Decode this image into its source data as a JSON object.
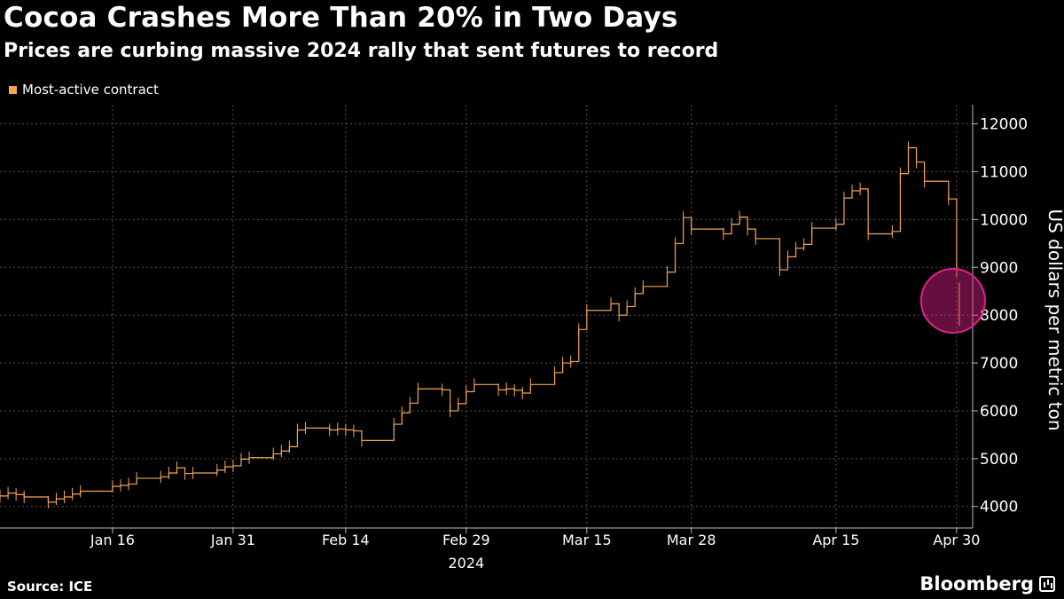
{
  "title": "Cocoa Crashes More Than 20% in Two Days",
  "subtitle": "Prices are curbing massive 2024 rally that sent futures to record",
  "source": "Source: ICE",
  "brand": "Bloomberg",
  "brand_icon": "bloomberg-chart-icon",
  "colors": {
    "background": "#000000",
    "series": "#f5a650",
    "grid": "#555555",
    "highlight": "#e0218a"
  },
  "chart_data": {
    "type": "line",
    "title": "Cocoa Crashes More Than 20% in Two Days",
    "subtitle": "Prices are curbing massive 2024 rally that sent futures to record",
    "ylabel": "US dollars per metric ton",
    "xlabel": "",
    "year_label": "2024",
    "ylim": [
      3550,
      12400
    ],
    "yticks": [
      4000,
      5000,
      6000,
      7000,
      8000,
      9000,
      10000,
      11000,
      12000
    ],
    "xticks": [
      {
        "label": "Jan 16",
        "x": "2024-01-16"
      },
      {
        "label": "Jan 31",
        "x": "2024-01-31"
      },
      {
        "label": "Feb 14",
        "x": "2024-02-14"
      },
      {
        "label": "Feb 29",
        "x": "2024-02-29"
      },
      {
        "label": "Mar 15",
        "x": "2024-03-15"
      },
      {
        "label": "Mar 28",
        "x": "2024-03-28"
      },
      {
        "label": "Apr 15",
        "x": "2024-04-15"
      },
      {
        "label": "Apr 30",
        "x": "2024-04-30"
      }
    ],
    "xlim": [
      "2024-01-02",
      "2024-05-02"
    ],
    "grid": true,
    "legend_position": "top-left",
    "highlight": {
      "x": "2024-04-30",
      "y": 8300,
      "note": "circled final two sessions"
    },
    "series": [
      {
        "name": "Most-active contract",
        "x": [
          "2024-01-02",
          "2024-01-03",
          "2024-01-04",
          "2024-01-05",
          "2024-01-08",
          "2024-01-09",
          "2024-01-10",
          "2024-01-11",
          "2024-01-12",
          "2024-01-16",
          "2024-01-17",
          "2024-01-18",
          "2024-01-19",
          "2024-01-22",
          "2024-01-23",
          "2024-01-24",
          "2024-01-25",
          "2024-01-26",
          "2024-01-29",
          "2024-01-30",
          "2024-01-31",
          "2024-02-01",
          "2024-02-02",
          "2024-02-05",
          "2024-02-06",
          "2024-02-07",
          "2024-02-08",
          "2024-02-09",
          "2024-02-12",
          "2024-02-13",
          "2024-02-14",
          "2024-02-15",
          "2024-02-16",
          "2024-02-20",
          "2024-02-21",
          "2024-02-22",
          "2024-02-23",
          "2024-02-26",
          "2024-02-27",
          "2024-02-28",
          "2024-02-29",
          "2024-03-01",
          "2024-03-04",
          "2024-03-05",
          "2024-03-06",
          "2024-03-07",
          "2024-03-08",
          "2024-03-11",
          "2024-03-12",
          "2024-03-13",
          "2024-03-14",
          "2024-03-15",
          "2024-03-18",
          "2024-03-19",
          "2024-03-20",
          "2024-03-21",
          "2024-03-22",
          "2024-03-25",
          "2024-03-26",
          "2024-03-27",
          "2024-03-28",
          "2024-04-01",
          "2024-04-02",
          "2024-04-03",
          "2024-04-04",
          "2024-04-05",
          "2024-04-08",
          "2024-04-09",
          "2024-04-10",
          "2024-04-11",
          "2024-04-12",
          "2024-04-15",
          "2024-04-16",
          "2024-04-17",
          "2024-04-18",
          "2024-04-19",
          "2024-04-22",
          "2024-04-23",
          "2024-04-24",
          "2024-04-25",
          "2024-04-26",
          "2024-04-29",
          "2024-04-30"
        ],
        "values": [
          4220,
          4280,
          4250,
          4200,
          4090,
          4160,
          4200,
          4260,
          4320,
          4420,
          4440,
          4470,
          4590,
          4620,
          4700,
          4810,
          4690,
          4700,
          4760,
          4830,
          4850,
          4990,
          5020,
          5100,
          5160,
          5250,
          5600,
          5640,
          5600,
          5620,
          5600,
          5580,
          5380,
          5720,
          5960,
          6160,
          6460,
          6440,
          6000,
          6150,
          6400,
          6550,
          6440,
          6460,
          6430,
          6370,
          6550,
          6800,
          7000,
          7030,
          7700,
          8100,
          8240,
          8000,
          8180,
          8450,
          8600,
          8900,
          9500,
          10040,
          9800,
          9700,
          9900,
          10050,
          9800,
          9600,
          8950,
          9220,
          9400,
          9480,
          9820,
          9900,
          10450,
          10600,
          10640,
          9700,
          9750,
          10960,
          11500,
          11200,
          10800,
          10430,
          8930
        ]
      }
    ],
    "last_session_range": {
      "x": "2024-04-30",
      "high": 8680,
      "low": 7780
    }
  }
}
